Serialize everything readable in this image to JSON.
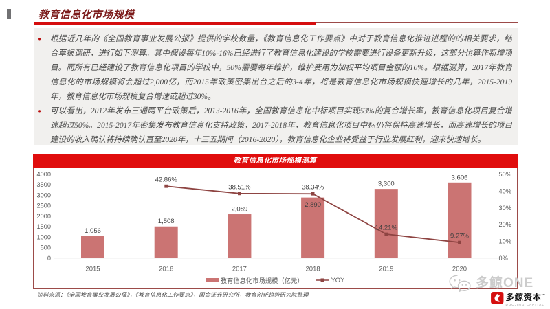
{
  "header": {
    "title": "教育信息化市场规模"
  },
  "bullets": [
    {
      "lines": [
        "根据近几年的《全国教育事业发展公报》提供的学校数量，《教育信息化工作要点》中对于教育信息化推进进程的的相关要求，结",
        "合草根调研，进行如下测算。其中假设每年10%-16%已经进行了教育信息化建设的学校需要进行设备更新升级，这部分也算作新增项",
        "目。而所有已经建设了教育信息化项目的学校中，50%需要每年维护，维护费用为加权平均项目金额的10%。根据测算，2017年教育",
        "信息化的市场规模将会超过2,000亿，而2015年政策密集出台之后的3-4年，将是教育信息化市场规模快速增长的几年，2015-2019",
        "年，教育信息化市场规模复合增速或超过30%。"
      ]
    },
    {
      "lines": [
        "可以看出，2012年发布三通两平台政策后，2013-2016年，全国教育信息化中标项目实现53%的复合增长率，教育信息化项目复合增",
        "速超过50%。2015-2017年密集发布教育信息化支持政策，2017-2018年，教育信息化项目中标仍将保持高速增长，而高速增长的项目",
        "建设的收入确认将持续确认直至2020年，十三五期间（2016-2020），教育信息化企业将受益于行业发展红利，迎来快速增长。"
      ]
    }
  ],
  "chart_data": {
    "type": "bar",
    "title": "教育信息化市场规模测算",
    "categories": [
      "2015",
      "2016",
      "2017",
      "2018",
      "2019",
      "2020"
    ],
    "series": [
      {
        "name": "教育信息化市场规模（亿元）",
        "type": "bar",
        "values": [
          1056,
          1508,
          2089,
          2890,
          3300,
          3606
        ],
        "labels": [
          "1,056",
          "1,508",
          "2,089",
          "2,890",
          "3,300",
          "3,606"
        ],
        "label_positions": [
          "above",
          "above",
          "above",
          "inside",
          "above",
          "above"
        ]
      },
      {
        "name": "YOY",
        "type": "line",
        "values": [
          null,
          42.86,
          38.51,
          38.34,
          14.21,
          9.27
        ],
        "labels": [
          null,
          "42.86%",
          "38.51%",
          "38.34%",
          "14.21%",
          "9.27%"
        ]
      }
    ],
    "left_axis": {
      "min": 0,
      "max": 4000,
      "step": 500,
      "ticks": [
        "0",
        "500",
        "1000",
        "1500",
        "2000",
        "2500",
        "3000",
        "3500",
        "4000"
      ]
    },
    "right_axis": {
      "min": 0,
      "max": 50,
      "step": 10,
      "ticks": [
        "0%",
        "10%",
        "20%",
        "30%",
        "40%",
        "50%"
      ]
    },
    "legend": [
      "教育信息化市场规模（亿元）",
      "YOY"
    ],
    "legend_position": "bottom",
    "grid": "baseline-only",
    "colors": {
      "bar": "#cb7473",
      "line": "#8e4442",
      "axis_text": "#595959",
      "label_text": "#3f3f3f",
      "baseline": "#dcdcdc"
    }
  },
  "footer": {
    "source": "资料来源：《全国教育事业发展公报》，《教育信息化工作要点》，国金证券研究所，教育创新趋势研究院整理"
  },
  "watermark": {
    "text": "多鲸ONE"
  },
  "brand": {
    "name": "多鲸资本",
    "tm": "™",
    "subtitle": "DUOJING CAPITAL"
  },
  "colors": {
    "accent_red": "#e00d0d",
    "rule_red": "#d50e0e",
    "rule_maroon": "#9c4a48",
    "title_maroon": "#7c1b1b",
    "panel_gray": "#f1f0ee",
    "bar_salmon": "#cb7473",
    "line_maroon": "#8e4442",
    "watermark_gray": "#c9c9c9",
    "logo_red": "#d50f0f"
  }
}
